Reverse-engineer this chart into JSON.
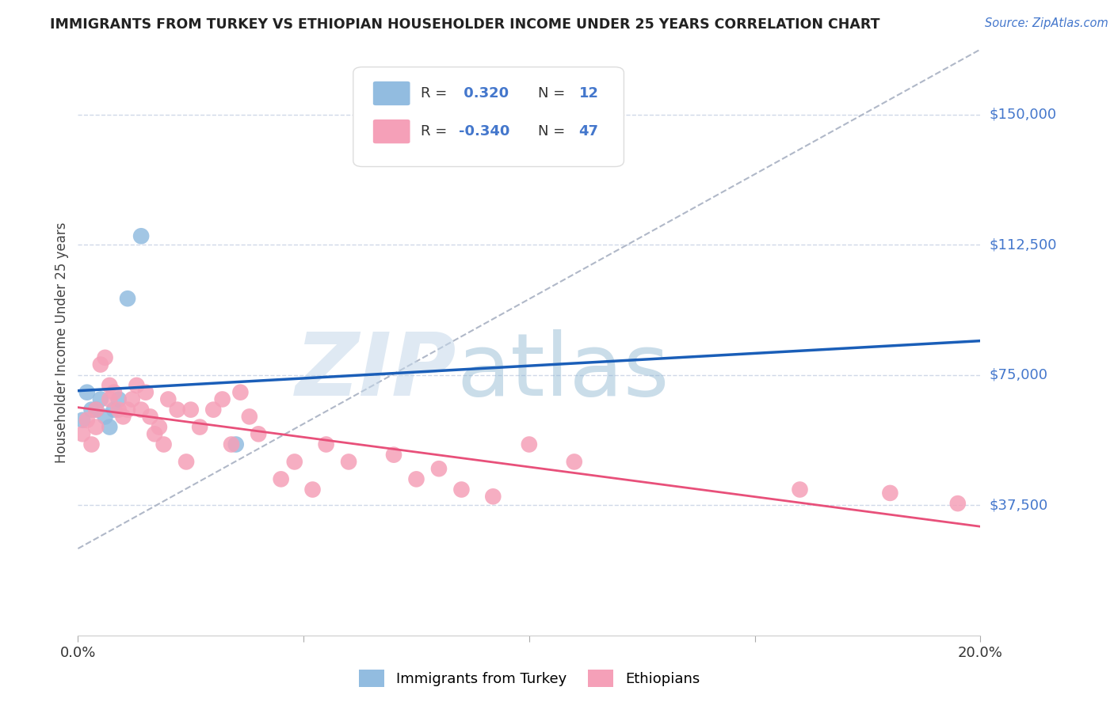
{
  "title": "IMMIGRANTS FROM TURKEY VS ETHIOPIAN HOUSEHOLDER INCOME UNDER 25 YEARS CORRELATION CHART",
  "source": "Source: ZipAtlas.com",
  "ylabel": "Householder Income Under 25 years",
  "xlim": [
    0.0,
    0.2
  ],
  "ylim": [
    0,
    168750
  ],
  "ytick_vals": [
    37500,
    75000,
    112500,
    150000
  ],
  "ytick_labels": [
    "$37,500",
    "$75,000",
    "$112,500",
    "$150,000"
  ],
  "xtick_vals": [
    0.0,
    0.05,
    0.1,
    0.15,
    0.2
  ],
  "xtick_labels": [
    "0.0%",
    "",
    "",
    "",
    "20.0%"
  ],
  "watermark_zip": "ZIP",
  "watermark_atlas": "atlas",
  "legend_r1_label": "R = ",
  "legend_r1_val": " 0.320",
  "legend_n1_label": "N = ",
  "legend_n1_val": "12",
  "legend_r2_label": "R = ",
  "legend_r2_val": "-0.340",
  "legend_n2_label": "N = ",
  "legend_n2_val": "47",
  "turkey_color": "#92bce0",
  "ethiopian_color": "#f5a0b8",
  "turkey_line_color": "#1a5eb8",
  "ethiopian_line_color": "#e8507a",
  "ref_line_color": "#b0b8c8",
  "grid_color": "#d0d8e8",
  "title_color": "#222222",
  "source_color": "#4477cc",
  "yaxis_label_color": "#4477cc",
  "legend_val_color": "#4477cc",
  "legend_text_color": "#333333",
  "background_color": "#ffffff",
  "turkey_x": [
    0.001,
    0.002,
    0.003,
    0.004,
    0.005,
    0.006,
    0.007,
    0.008,
    0.009,
    0.011,
    0.014,
    0.035
  ],
  "turkey_y": [
    62000,
    70000,
    65000,
    65000,
    68000,
    63000,
    60000,
    65000,
    68000,
    97000,
    115000,
    55000
  ],
  "ethiopian_x": [
    0.001,
    0.002,
    0.003,
    0.004,
    0.004,
    0.005,
    0.006,
    0.007,
    0.007,
    0.008,
    0.009,
    0.01,
    0.011,
    0.012,
    0.013,
    0.014,
    0.015,
    0.016,
    0.017,
    0.018,
    0.019,
    0.02,
    0.022,
    0.024,
    0.025,
    0.027,
    0.03,
    0.032,
    0.034,
    0.036,
    0.038,
    0.04,
    0.045,
    0.048,
    0.052,
    0.055,
    0.06,
    0.07,
    0.075,
    0.08,
    0.085,
    0.092,
    0.1,
    0.11,
    0.16,
    0.18,
    0.195
  ],
  "ethiopian_y": [
    58000,
    62000,
    55000,
    65000,
    60000,
    78000,
    80000,
    68000,
    72000,
    70000,
    65000,
    63000,
    65000,
    68000,
    72000,
    65000,
    70000,
    63000,
    58000,
    60000,
    55000,
    68000,
    65000,
    50000,
    65000,
    60000,
    65000,
    68000,
    55000,
    70000,
    63000,
    58000,
    45000,
    50000,
    42000,
    55000,
    50000,
    52000,
    45000,
    48000,
    42000,
    40000,
    55000,
    50000,
    42000,
    41000,
    38000
  ],
  "figsize": [
    14.06,
    8.92
  ],
  "dpi": 100
}
